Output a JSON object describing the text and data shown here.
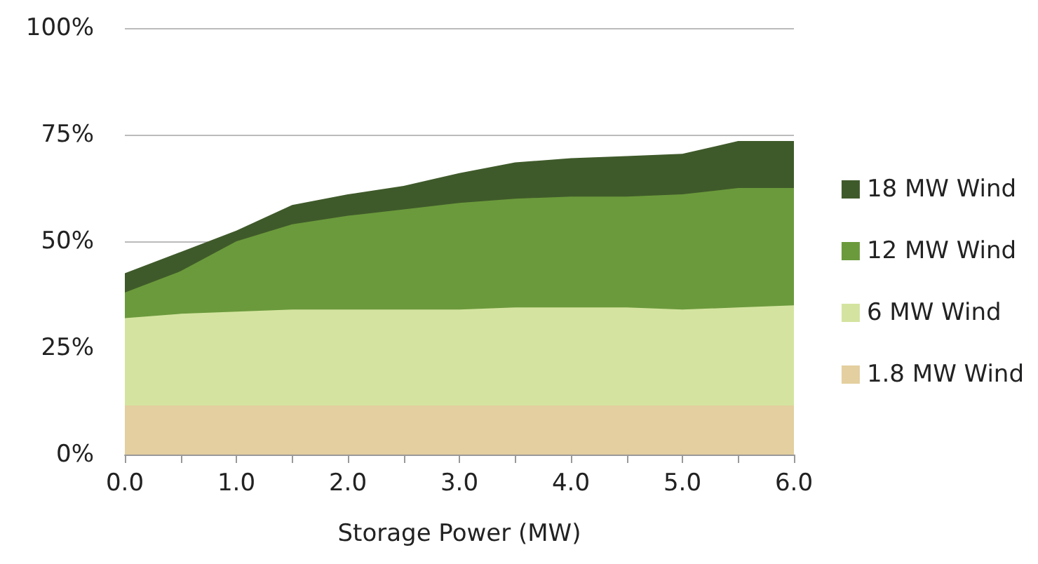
{
  "chart_data": {
    "type": "area",
    "stacked": true,
    "xlabel": "Storage Power (MW)",
    "x": [
      0,
      0.5,
      1,
      1.5,
      2,
      2.5,
      3,
      3.5,
      4,
      4.5,
      5,
      5.5,
      6
    ],
    "series": [
      {
        "name": "1.8 MW Wind",
        "color": "#e3cf9f",
        "values": [
          11.5,
          11.5,
          11.5,
          11.5,
          11.5,
          11.5,
          11.5,
          11.5,
          11.5,
          11.5,
          11.5,
          11.5,
          11.5
        ]
      },
      {
        "name": "6 MW Wind",
        "color": "#d4e4a0",
        "values": [
          20.5,
          21.5,
          22,
          22.5,
          22.5,
          22.5,
          22.5,
          23,
          23,
          23,
          22.5,
          23,
          23.5
        ]
      },
      {
        "name": "12 MW Wind",
        "color": "#6b9a3c",
        "values": [
          6,
          10,
          16.5,
          20,
          22,
          23.5,
          25,
          25.5,
          26,
          26,
          27,
          28,
          27.5
        ]
      },
      {
        "name": "18 MW Wind",
        "color": "#3f5a2a",
        "values": [
          4.5,
          4.5,
          2.5,
          4.5,
          5,
          5.5,
          7,
          8.5,
          9,
          9.5,
          9.5,
          11,
          11
        ]
      }
    ],
    "xlim": [
      0,
      6
    ],
    "xticks": [
      {
        "value": 0,
        "label": "0.0"
      },
      {
        "value": 0.5,
        "label": null
      },
      {
        "value": 1,
        "label": "1.0"
      },
      {
        "value": 1.5,
        "label": null
      },
      {
        "value": 2,
        "label": "2.0"
      },
      {
        "value": 2.5,
        "label": null
      },
      {
        "value": 3,
        "label": "3.0"
      },
      {
        "value": 3.5,
        "label": null
      },
      {
        "value": 4,
        "label": "4.0"
      },
      {
        "value": 4.5,
        "label": null
      },
      {
        "value": 5,
        "label": "5.0"
      },
      {
        "value": 5.5,
        "label": null
      },
      {
        "value": 6,
        "label": "6.0"
      }
    ],
    "ylim": [
      0,
      100
    ],
    "yticks": [
      {
        "value": 0,
        "label": "0%"
      },
      {
        "value": 25,
        "label": "25%"
      },
      {
        "value": 50,
        "label": "50%"
      },
      {
        "value": 75,
        "label": "75%"
      },
      {
        "value": 100,
        "label": "100%"
      }
    ],
    "grid": "y",
    "legend": "right"
  }
}
